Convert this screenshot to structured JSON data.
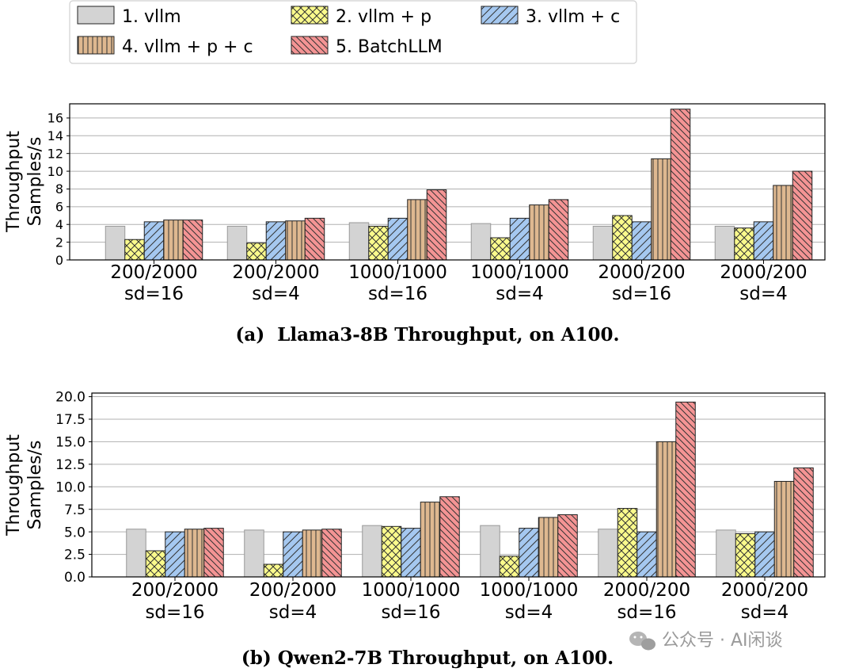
{
  "legend": {
    "entries": [
      "1. vllm",
      "2. vllm + p",
      "3. vllm + c",
      "4. vllm + p + c",
      "5. BatchLLM"
    ]
  },
  "series_style": [
    {
      "fill": "#d3d3d3",
      "hatch": "none",
      "hatch_color": "#999999"
    },
    {
      "fill": "#fafa8c",
      "hatch": "cross",
      "hatch_color": "#333333"
    },
    {
      "fill": "#a5c8f0",
      "hatch": "slash",
      "hatch_color": "#333333"
    },
    {
      "fill": "#deb890",
      "hatch": "vertical",
      "hatch_color": "#333333"
    },
    {
      "fill": "#f49494",
      "hatch": "backslash",
      "hatch_color": "#333333"
    }
  ],
  "chart_data": [
    {
      "type": "bar",
      "title": "",
      "caption": "(a)  Llama3-8B Throughput, on A100.",
      "ylabel_lines": [
        "Throughput",
        "Samples/s"
      ],
      "xlabel": "",
      "category_lines": [
        [
          "200/2000",
          "sd=16"
        ],
        [
          "200/2000",
          "sd=4"
        ],
        [
          "1000/1000",
          "sd=16"
        ],
        [
          "1000/1000",
          "sd=4"
        ],
        [
          "2000/200",
          "sd=16"
        ],
        [
          "2000/200",
          "sd=4"
        ]
      ],
      "ylim": [
        0,
        17.6
      ],
      "yticks": [
        0,
        2,
        4,
        6,
        8,
        10,
        12,
        14,
        16
      ],
      "ytick_labels": [
        "0",
        "2",
        "4",
        "6",
        "8",
        "10",
        "12",
        "14",
        "16"
      ],
      "grid": true,
      "series": [
        {
          "name": "1. vllm",
          "values": [
            3.8,
            3.8,
            4.2,
            4.1,
            3.8,
            3.8
          ]
        },
        {
          "name": "2. vllm + p",
          "values": [
            2.3,
            1.9,
            3.8,
            2.5,
            5.0,
            3.6
          ]
        },
        {
          "name": "3. vllm + c",
          "values": [
            4.3,
            4.3,
            4.7,
            4.7,
            4.3,
            4.3
          ]
        },
        {
          "name": "4. vllm + p + c",
          "values": [
            4.5,
            4.4,
            6.8,
            6.2,
            11.4,
            8.4
          ]
        },
        {
          "name": "5. BatchLLM",
          "values": [
            4.5,
            4.7,
            7.9,
            6.8,
            17.0,
            10.0
          ]
        }
      ]
    },
    {
      "type": "bar",
      "title": "",
      "caption": "(b) Qwen2-7B Throughput, on A100.",
      "ylabel_lines": [
        "Throughput",
        "Samples/s"
      ],
      "xlabel": "",
      "category_lines": [
        [
          "200/2000",
          "sd=16"
        ],
        [
          "200/2000",
          "sd=4"
        ],
        [
          "1000/1000",
          "sd=16"
        ],
        [
          "1000/1000",
          "sd=4"
        ],
        [
          "2000/200",
          "sd=16"
        ],
        [
          "2000/200",
          "sd=4"
        ]
      ],
      "ylim": [
        0,
        20.4
      ],
      "yticks": [
        0,
        2.5,
        5,
        7.5,
        10,
        12.5,
        15,
        17.5,
        20
      ],
      "ytick_labels": [
        "0.0",
        "2.5",
        "5.0",
        "7.5",
        "10.0",
        "12.5",
        "15.0",
        "17.5",
        "20.0"
      ],
      "grid": true,
      "series": [
        {
          "name": "1. vllm",
          "values": [
            5.3,
            5.2,
            5.7,
            5.7,
            5.3,
            5.2
          ]
        },
        {
          "name": "2. vllm + p",
          "values": [
            2.9,
            1.4,
            5.6,
            2.3,
            7.6,
            4.8
          ]
        },
        {
          "name": "3. vllm + c",
          "values": [
            5.0,
            5.0,
            5.4,
            5.4,
            5.0,
            5.0
          ]
        },
        {
          "name": "4. vllm + p + c",
          "values": [
            5.3,
            5.2,
            8.3,
            6.6,
            15.0,
            10.6
          ]
        },
        {
          "name": "5. BatchLLM",
          "values": [
            5.4,
            5.3,
            8.9,
            6.9,
            19.4,
            12.1
          ]
        }
      ]
    }
  ],
  "watermark": {
    "text": "公众号 · AI闲谈"
  }
}
